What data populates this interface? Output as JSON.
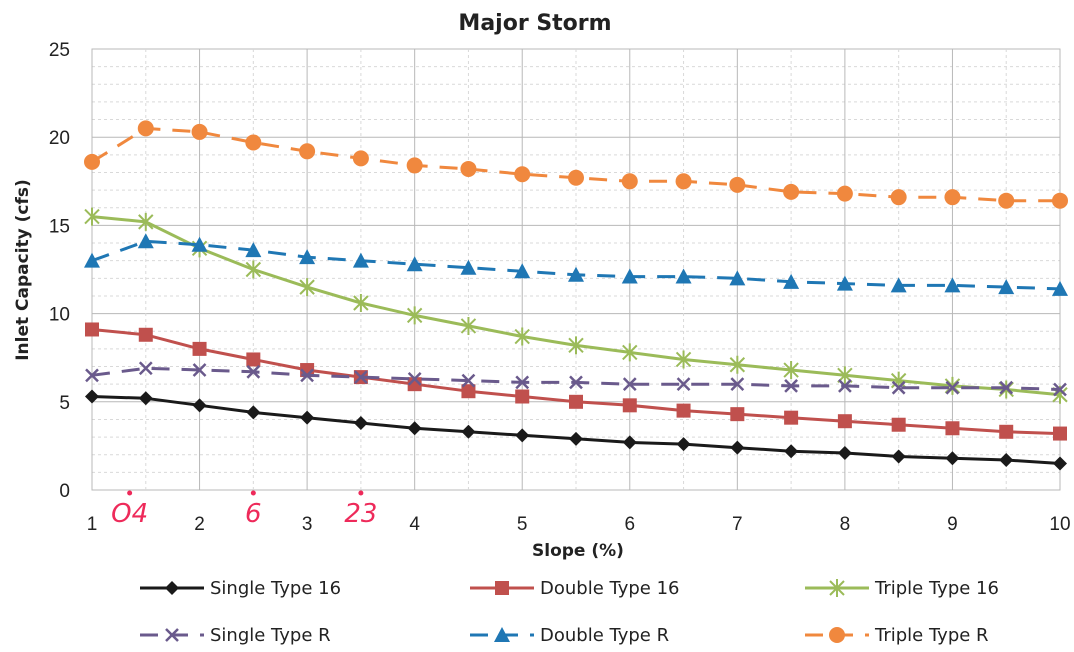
{
  "chart_data": {
    "type": "line",
    "title": "Major Storm",
    "xlabel": "Slope (%)",
    "ylabel": "Inlet Capacity (cfs)",
    "xlim": [
      1,
      10
    ],
    "ylim": [
      0,
      25
    ],
    "x_ticks": [
      1,
      2,
      3,
      4,
      5,
      6,
      7,
      8,
      9,
      10
    ],
    "y_ticks": [
      0,
      5,
      10,
      15,
      20,
      25
    ],
    "grid": true,
    "legend_position": "bottom",
    "x": [
      1,
      1.5,
      2,
      2.5,
      3,
      3.5,
      4,
      4.5,
      5,
      5.5,
      6,
      6.5,
      7,
      7.5,
      8,
      8.5,
      9,
      9.5,
      10
    ],
    "series": [
      {
        "name": "Single Type 16",
        "color": "#1a1a1a",
        "marker": "diamond",
        "dash": "solid",
        "values": [
          5.3,
          5.2,
          4.8,
          4.4,
          4.1,
          3.8,
          3.5,
          3.3,
          3.1,
          2.9,
          2.7,
          2.6,
          2.4,
          2.2,
          2.1,
          1.9,
          1.8,
          1.7,
          1.5
        ]
      },
      {
        "name": "Double Type 16",
        "color": "#c0504d",
        "marker": "square",
        "dash": "solid",
        "values": [
          9.1,
          8.8,
          8.0,
          7.4,
          6.8,
          6.4,
          6.0,
          5.6,
          5.3,
          5.0,
          4.8,
          4.5,
          4.3,
          4.1,
          3.9,
          3.7,
          3.5,
          3.3,
          3.2
        ]
      },
      {
        "name": "Triple Type 16",
        "color": "#9bbb59",
        "marker": "star",
        "dash": "solid",
        "values": [
          15.5,
          15.2,
          13.7,
          12.5,
          11.5,
          10.6,
          9.9,
          9.3,
          8.7,
          8.2,
          7.8,
          7.4,
          7.1,
          6.8,
          6.5,
          6.2,
          5.9,
          5.7,
          5.4
        ]
      },
      {
        "name": "Single Type R",
        "color": "#6a5a8c",
        "marker": "x",
        "dash": "dashed",
        "values": [
          6.5,
          6.9,
          6.8,
          6.7,
          6.5,
          6.4,
          6.3,
          6.2,
          6.1,
          6.1,
          6.0,
          6.0,
          6.0,
          5.9,
          5.9,
          5.8,
          5.8,
          5.8,
          5.7
        ]
      },
      {
        "name": "Double Type R",
        "color": "#1f77b4",
        "marker": "triangle",
        "dash": "dashed",
        "values": [
          13.0,
          14.1,
          13.9,
          13.6,
          13.2,
          13.0,
          12.8,
          12.6,
          12.4,
          12.2,
          12.1,
          12.1,
          12.0,
          11.8,
          11.7,
          11.6,
          11.6,
          11.5,
          11.4
        ]
      },
      {
        "name": "Triple Type R",
        "color": "#f0883e",
        "marker": "circle",
        "dash": "dashed",
        "values": [
          18.6,
          20.5,
          20.3,
          19.7,
          19.2,
          18.8,
          18.4,
          18.2,
          17.9,
          17.7,
          17.5,
          17.5,
          17.3,
          16.9,
          16.8,
          16.6,
          16.6,
          16.4,
          16.4
        ]
      }
    ],
    "annotations": [
      {
        "text": "O4",
        "x": 1.35,
        "color": "#ee2a5a"
      },
      {
        "text": "6",
        "x": 2.5,
        "color": "#ee2a5a"
      },
      {
        "text": "23",
        "x": 3.5,
        "color": "#ee2a5a"
      }
    ]
  }
}
